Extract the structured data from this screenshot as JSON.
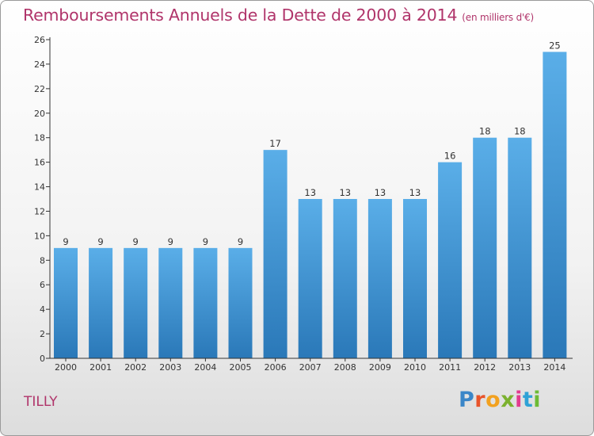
{
  "header": {
    "title": "Remboursements Annuels de la Dette de 2000 à 2014",
    "unit_note": "(en milliers d'€)"
  },
  "footer": {
    "commune": "TILLY",
    "logo_text": "Proxiti"
  },
  "colors": {
    "title": "#b0346a",
    "bar_light": "#5aaee8",
    "bar_dark": "#2a78b8",
    "axis": "#333333"
  },
  "chart_data": {
    "type": "bar",
    "title": "Remboursements Annuels de la Dette de 2000 à 2014",
    "xlabel": "",
    "ylabel": "",
    "categories": [
      "2000",
      "2001",
      "2002",
      "2003",
      "2004",
      "2005",
      "2006",
      "2007",
      "2008",
      "2009",
      "2010",
      "2011",
      "2012",
      "2013",
      "2014"
    ],
    "values": [
      9,
      9,
      9,
      9,
      9,
      9,
      17,
      13,
      13,
      13,
      13,
      16,
      18,
      18,
      25
    ],
    "ylim": [
      0,
      26
    ],
    "yticks": [
      0,
      2,
      4,
      6,
      8,
      10,
      12,
      14,
      16,
      18,
      20,
      22,
      24,
      26
    ],
    "grid": false,
    "legend": "none"
  }
}
